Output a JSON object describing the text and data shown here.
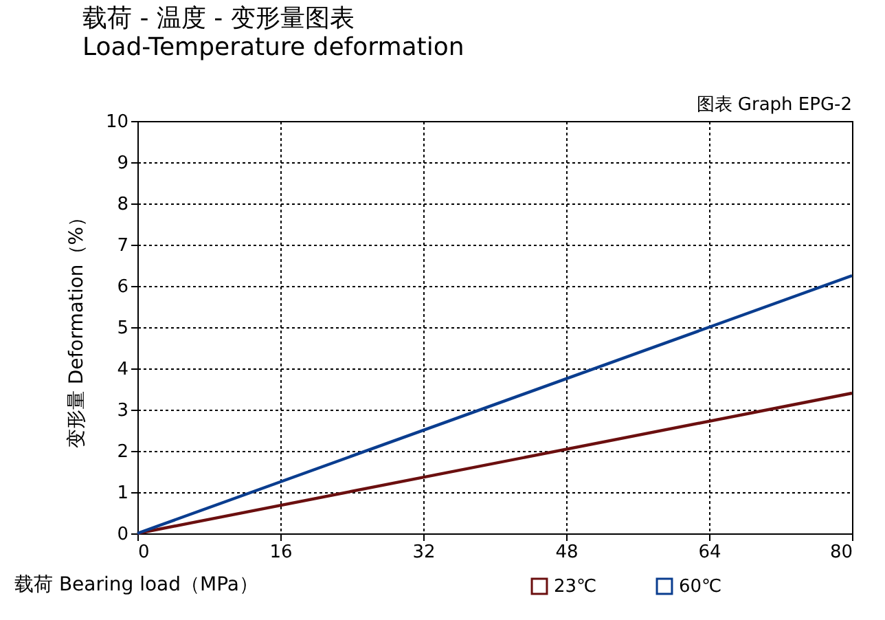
{
  "chart_data": {
    "type": "line",
    "title": "载荷 - 温度 - 变形量图表",
    "subtitle": "Load-Temperature deformation",
    "annotations": [
      "图表 Graph EPG-2"
    ],
    "xlabel": "载荷 Bearing load（MPa）",
    "ylabel": "变形量 Deformation（%）",
    "x": [
      0,
      80
    ],
    "series": [
      {
        "name": "23℃",
        "color": "#6b0f0f",
        "values": [
          0,
          3.4
        ]
      },
      {
        "name": "60℃",
        "color": "#0a3d8f",
        "values": [
          0,
          6.25
        ]
      }
    ],
    "xlim": [
      0,
      80
    ],
    "xticks": [
      0,
      16,
      32,
      48,
      64,
      80
    ],
    "ylim": [
      0,
      10
    ],
    "yticks": [
      0,
      1,
      2,
      3,
      4,
      5,
      6,
      7,
      8,
      9,
      10
    ],
    "grid": true,
    "legend": "bottom right",
    "marker": "none",
    "line_style": "solid"
  }
}
